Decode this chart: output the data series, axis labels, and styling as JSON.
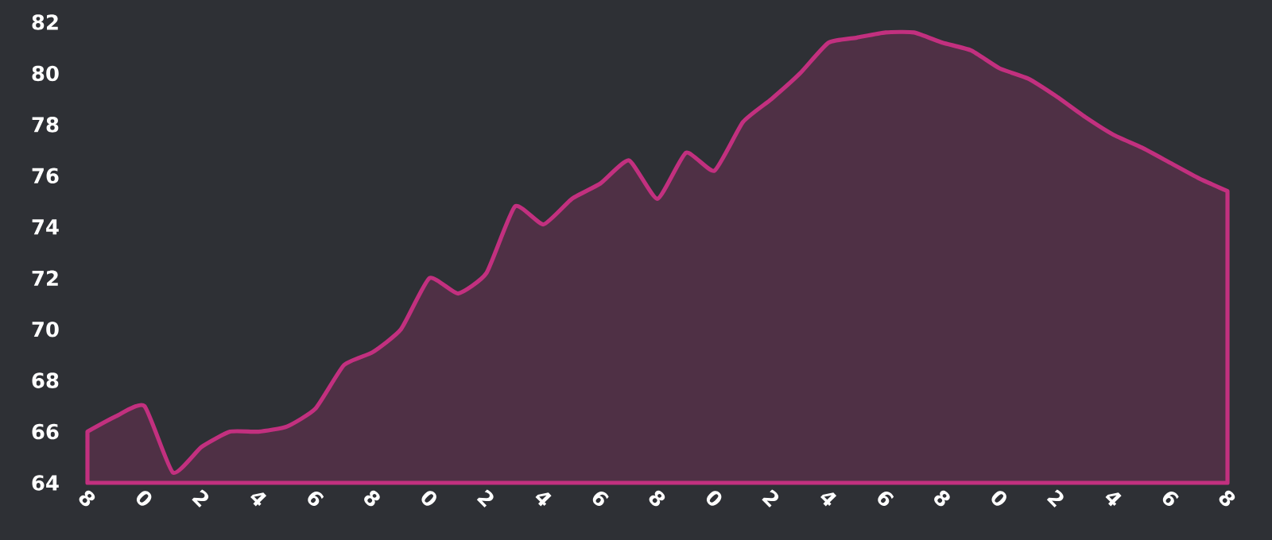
{
  "chart_data": {
    "type": "area",
    "color": "#c2307f",
    "categories": [
      "8",
      null,
      "0",
      null,
      "2",
      null,
      "4",
      null,
      "6",
      null,
      "8",
      null,
      "0",
      null,
      "2",
      null,
      "4",
      null,
      "6",
      null,
      "8",
      null,
      "0",
      null,
      "2",
      null,
      "4",
      null,
      "6",
      null,
      "8",
      null,
      "0",
      null,
      "2",
      null,
      "4",
      null,
      "6",
      null,
      "8"
    ],
    "values": [
      66.0,
      66.6,
      67.0,
      64.4,
      65.4,
      66.0,
      66.0,
      66.2,
      66.9,
      68.6,
      69.1,
      70.0,
      72.0,
      71.4,
      72.2,
      74.8,
      74.1,
      75.1,
      75.7,
      76.6,
      75.1,
      76.9,
      76.2,
      78.1,
      79.0,
      80.0,
      81.2,
      81.4,
      81.6,
      81.6,
      81.2,
      80.9,
      80.2,
      79.8,
      79.1,
      78.3,
      77.6,
      77.1,
      76.5,
      75.9,
      75.4
    ],
    "ylim": [
      64,
      82
    ],
    "yticks": [
      64,
      66,
      68,
      70,
      72,
      74,
      76,
      78,
      80,
      82
    ]
  }
}
